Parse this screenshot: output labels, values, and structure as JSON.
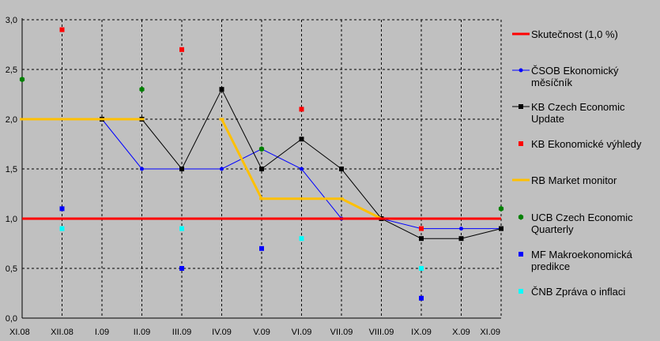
{
  "chart_data": {
    "type": "line",
    "categories": [
      "XI.08",
      "XII.08",
      "I.09",
      "II.09",
      "III.09",
      "IV.09",
      "V.09",
      "VI.09",
      "VII.09",
      "VIII.09",
      "IX.09",
      "X.09",
      "XI.09"
    ],
    "ylim": [
      0,
      3
    ],
    "yticks": [
      "0,0",
      "0,5",
      "1,0",
      "1,5",
      "2,0",
      "2,5",
      "3,0"
    ],
    "grid": true,
    "legend_position": "right",
    "series": [
      {
        "name": "Skutečnost (1,0 %)",
        "kind": "line",
        "color": "#ff0000",
        "marker": "none",
        "values": [
          1,
          1,
          1,
          1,
          1,
          1,
          1,
          1,
          1,
          1,
          1,
          1,
          1
        ]
      },
      {
        "name": "ČSOB Ekonomický měsíčník",
        "kind": "line",
        "color": "#0000ff",
        "marker": "circle",
        "values": [
          null,
          null,
          2.0,
          1.5,
          1.5,
          1.5,
          1.7,
          1.5,
          1.0,
          1.0,
          0.9,
          0.9,
          0.9
        ]
      },
      {
        "name": "KB Czech Economic Update",
        "kind": "line",
        "color": "#000000",
        "marker": "square",
        "values": [
          null,
          null,
          2.0,
          2.0,
          1.5,
          2.3,
          1.5,
          1.8,
          1.5,
          1.0,
          0.8,
          0.8,
          0.9
        ]
      },
      {
        "name": "KB Ekonomické výhledy",
        "kind": "points",
        "color": "#ff0000",
        "marker": "square",
        "values": [
          null,
          2.9,
          null,
          null,
          2.7,
          null,
          null,
          2.1,
          null,
          null,
          0.9,
          null,
          null
        ]
      },
      {
        "name": "RB Market monitor",
        "kind": "line",
        "color": "#ffc000",
        "marker": "dash",
        "values": [
          2.0,
          2.0,
          2.0,
          2.0,
          null,
          2.0,
          1.2,
          1.2,
          1.2,
          1.0,
          1.0,
          1.0,
          null
        ]
      },
      {
        "name": "UCB Czech Economic Quarterly",
        "kind": "points",
        "color": "#008000",
        "marker": "hexagon",
        "values": [
          2.4,
          null,
          null,
          2.3,
          null,
          null,
          1.7,
          null,
          null,
          null,
          null,
          null,
          1.1
        ]
      },
      {
        "name": "MF Makroekonomická predikce",
        "kind": "points",
        "color": "#0000ff",
        "marker": "square",
        "values": [
          null,
          1.1,
          null,
          null,
          0.5,
          null,
          0.7,
          null,
          null,
          null,
          0.2,
          null,
          null
        ]
      },
      {
        "name": "ČNB Zpráva o inflaci",
        "kind": "points",
        "color": "#00ffff",
        "marker": "square",
        "values": [
          null,
          0.9,
          null,
          null,
          0.9,
          null,
          null,
          0.8,
          null,
          null,
          0.5,
          null,
          null
        ]
      }
    ]
  }
}
